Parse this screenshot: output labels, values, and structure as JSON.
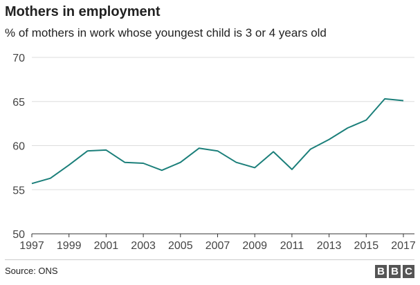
{
  "header": {
    "title": "Mothers in employment",
    "subtitle": "% of mothers in work whose youngest child is 3 or 4 years old"
  },
  "footer": {
    "source": "Source: ONS",
    "logo_letters": [
      "B",
      "B",
      "C"
    ]
  },
  "chart_data": {
    "type": "line",
    "ylim": [
      50,
      70
    ],
    "xlim": [
      1997,
      2017
    ],
    "y_ticks": [
      50,
      55,
      60,
      65,
      70
    ],
    "x_ticks": [
      1997,
      1999,
      2001,
      2003,
      2005,
      2007,
      2009,
      2011,
      2013,
      2015,
      2017
    ],
    "grid": true,
    "line_color": "#1b7f7a",
    "series": [
      {
        "x": [
          1997,
          1998,
          1999,
          2000,
          2001,
          2002,
          2003,
          2004,
          2005,
          2006,
          2007,
          2008,
          2009,
          2010,
          2011,
          2012,
          2013,
          2014,
          2015,
          2016,
          2017
        ],
        "values": [
          55.7,
          56.3,
          57.8,
          59.4,
          59.5,
          58.1,
          58.0,
          57.2,
          58.1,
          59.7,
          59.4,
          58.1,
          57.5,
          59.3,
          57.3,
          59.6,
          60.7,
          62.0,
          62.9,
          65.3,
          65.1
        ]
      }
    ]
  }
}
